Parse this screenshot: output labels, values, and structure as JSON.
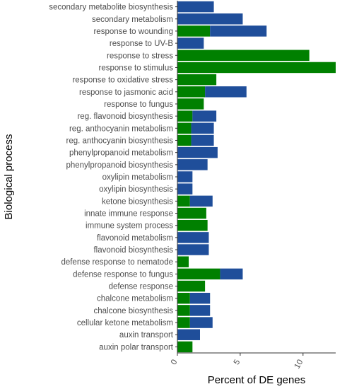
{
  "chart_data": {
    "type": "bar",
    "orientation": "horizontal",
    "stacked": true,
    "xlabel": "Percent of DE genes",
    "ylabel": "Biological process",
    "xlim": [
      0,
      12.6
    ],
    "xticks": [
      "0",
      "5",
      "10"
    ],
    "grid": false,
    "legend": "none",
    "colors": {
      "green": "#008000",
      "blue": "#1f4e9a",
      "axis": "#333333"
    },
    "categories": [
      "secondary metabolite biosynthesis",
      "secondary metabolism",
      "response to wounding",
      "response to UV-B",
      "response to stress",
      "response to stimulus",
      "response to oxidative stress",
      "response to jasmonic acid",
      "response to fungus",
      "reg. flavonoid biosynthesis",
      "reg. anthocyanin metabolism",
      "reg. anthocyanin biosynthesis",
      "phenylpropanoid metabolism",
      "phenylpropanoid biosynthesis",
      "oxylipin metabolism",
      "oxylipin biosynthesis",
      "ketone biosynthesis",
      "innate immune response",
      "immune system process",
      "flavonoid metabolism",
      "flavonoid biosynthesis",
      "defense response to nematode",
      "defense response to fungus",
      "defense response",
      "chalcone metabolism",
      "chalcone biosynthesis",
      "cellular ketone metabolism",
      "auxin transport",
      "auxin polar transport"
    ],
    "series": [
      {
        "color": "#008000",
        "values": [
          0,
          0,
          2.6,
          0,
          10.5,
          12.6,
          3.1,
          2.2,
          2.1,
          1.2,
          1.1,
          1.1,
          0,
          0,
          0,
          0,
          1.0,
          2.3,
          2.4,
          0,
          0,
          0.9,
          3.4,
          2.2,
          1.0,
          1.0,
          1.0,
          0,
          1.2
        ]
      },
      {
        "color": "#1f4e9a",
        "values": [
          2.9,
          5.2,
          4.5,
          2.1,
          0,
          0,
          0,
          3.3,
          0,
          1.9,
          1.8,
          1.8,
          3.2,
          2.4,
          1.2,
          1.2,
          1.8,
          0,
          0,
          2.5,
          2.5,
          0,
          1.8,
          0,
          1.6,
          1.6,
          1.8,
          1.8,
          0
        ]
      }
    ]
  }
}
